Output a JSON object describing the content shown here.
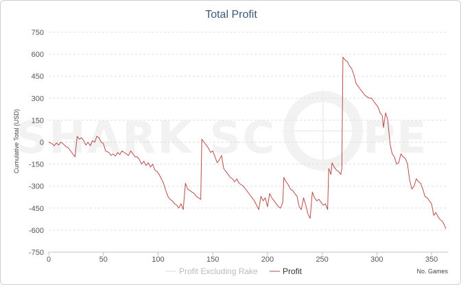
{
  "chart_data": {
    "type": "line",
    "title": "Total Profit",
    "xlabel": "No. Games",
    "ylabel": "Cumulative Total (USD)",
    "xlim": [
      0,
      365
    ],
    "ylim": [
      -750,
      750
    ],
    "x_ticks": [
      0,
      50,
      100,
      150,
      200,
      250,
      300,
      350
    ],
    "y_ticks": [
      750,
      600,
      450,
      300,
      150,
      0,
      -150,
      -300,
      -450,
      -600,
      -750
    ],
    "grid": "horizontal dashed",
    "legend_position": "bottom",
    "watermark": "SHARK SCOPE",
    "series": [
      {
        "name": "Profit Excluding Rake",
        "color": "#d8d8d8",
        "points": []
      },
      {
        "name": "Profit",
        "color": "#b94a48",
        "points": [
          [
            0,
            0
          ],
          [
            3,
            -10
          ],
          [
            5,
            -25
          ],
          [
            7,
            -5
          ],
          [
            9,
            -20
          ],
          [
            11,
            0
          ],
          [
            13,
            -10
          ],
          [
            15,
            -25
          ],
          [
            18,
            -40
          ],
          [
            21,
            -70
          ],
          [
            24,
            -100
          ],
          [
            26,
            40
          ],
          [
            28,
            20
          ],
          [
            30,
            30
          ],
          [
            32,
            10
          ],
          [
            34,
            -20
          ],
          [
            36,
            0
          ],
          [
            38,
            -25
          ],
          [
            40,
            10
          ],
          [
            42,
            0
          ],
          [
            44,
            40
          ],
          [
            46,
            30
          ],
          [
            48,
            0
          ],
          [
            50,
            -10
          ],
          [
            52,
            -60
          ],
          [
            55,
            -70
          ],
          [
            57,
            -90
          ],
          [
            59,
            -80
          ],
          [
            61,
            -95
          ],
          [
            63,
            -70
          ],
          [
            65,
            -85
          ],
          [
            67,
            -60
          ],
          [
            69,
            -70
          ],
          [
            71,
            -80
          ],
          [
            73,
            -90
          ],
          [
            75,
            -60
          ],
          [
            77,
            -80
          ],
          [
            79,
            -100
          ],
          [
            81,
            -100
          ],
          [
            83,
            -120
          ],
          [
            85,
            -150
          ],
          [
            87,
            -130
          ],
          [
            89,
            -160
          ],
          [
            91,
            -140
          ],
          [
            93,
            -170
          ],
          [
            95,
            -150
          ],
          [
            97,
            -190
          ],
          [
            99,
            -200
          ],
          [
            101,
            -220
          ],
          [
            103,
            -250
          ],
          [
            105,
            -280
          ],
          [
            107,
            -330
          ],
          [
            109,
            -370
          ],
          [
            111,
            -390
          ],
          [
            113,
            -400
          ],
          [
            115,
            -420
          ],
          [
            117,
            -430
          ],
          [
            119,
            -450
          ],
          [
            121,
            -420
          ],
          [
            123,
            -460
          ],
          [
            125,
            -280
          ],
          [
            127,
            -320
          ],
          [
            129,
            -330
          ],
          [
            131,
            -340
          ],
          [
            133,
            -350
          ],
          [
            135,
            -370
          ],
          [
            137,
            -380
          ],
          [
            139,
            -390
          ],
          [
            140,
            20
          ],
          [
            142,
            0
          ],
          [
            144,
            -20
          ],
          [
            146,
            -40
          ],
          [
            148,
            -70
          ],
          [
            150,
            -60
          ],
          [
            152,
            -100
          ],
          [
            154,
            -140
          ],
          [
            156,
            -120
          ],
          [
            158,
            -90
          ],
          [
            160,
            -180
          ],
          [
            162,
            -200
          ],
          [
            164,
            -220
          ],
          [
            166,
            -240
          ],
          [
            168,
            -250
          ],
          [
            170,
            -270
          ],
          [
            172,
            -250
          ],
          [
            174,
            -280
          ],
          [
            176,
            -290
          ],
          [
            178,
            -300
          ],
          [
            180,
            -320
          ],
          [
            182,
            -340
          ],
          [
            184,
            -360
          ],
          [
            186,
            -380
          ],
          [
            188,
            -400
          ],
          [
            190,
            -430
          ],
          [
            192,
            -460
          ],
          [
            194,
            -370
          ],
          [
            196,
            -400
          ],
          [
            198,
            -380
          ],
          [
            200,
            -440
          ],
          [
            202,
            -350
          ],
          [
            204,
            -380
          ],
          [
            206,
            -400
          ],
          [
            208,
            -420
          ],
          [
            210,
            -440
          ],
          [
            212,
            -450
          ],
          [
            214,
            -410
          ],
          [
            215,
            -240
          ],
          [
            217,
            -270
          ],
          [
            219,
            -290
          ],
          [
            221,
            -320
          ],
          [
            223,
            -330
          ],
          [
            225,
            -350
          ],
          [
            227,
            -370
          ],
          [
            229,
            -440
          ],
          [
            231,
            -460
          ],
          [
            233,
            -380
          ],
          [
            235,
            -430
          ],
          [
            237,
            -490
          ],
          [
            239,
            -520
          ],
          [
            241,
            -340
          ],
          [
            243,
            -380
          ],
          [
            245,
            -400
          ],
          [
            247,
            -390
          ],
          [
            249,
            -410
          ],
          [
            251,
            -430
          ],
          [
            253,
            -420
          ],
          [
            255,
            -460
          ],
          [
            256,
            -180
          ],
          [
            258,
            -220
          ],
          [
            259,
            -140
          ],
          [
            261,
            -170
          ],
          [
            263,
            -190
          ],
          [
            265,
            -200
          ],
          [
            267,
            -220
          ],
          [
            268,
            -180
          ],
          [
            269,
            580
          ],
          [
            271,
            560
          ],
          [
            273,
            550
          ],
          [
            275,
            520
          ],
          [
            277,
            500
          ],
          [
            279,
            460
          ],
          [
            281,
            400
          ],
          [
            283,
            380
          ],
          [
            285,
            360
          ],
          [
            287,
            340
          ],
          [
            289,
            320
          ],
          [
            291,
            310
          ],
          [
            293,
            300
          ],
          [
            295,
            300
          ],
          [
            297,
            280
          ],
          [
            299,
            260
          ],
          [
            301,
            240
          ],
          [
            303,
            200
          ],
          [
            305,
            180
          ],
          [
            306,
            100
          ],
          [
            308,
            200
          ],
          [
            310,
            150
          ],
          [
            312,
            -10
          ],
          [
            314,
            -80
          ],
          [
            316,
            -100
          ],
          [
            318,
            -150
          ],
          [
            320,
            -140
          ],
          [
            322,
            -80
          ],
          [
            324,
            -100
          ],
          [
            326,
            -110
          ],
          [
            328,
            -150
          ],
          [
            330,
            -260
          ],
          [
            332,
            -320
          ],
          [
            334,
            -300
          ],
          [
            336,
            -250
          ],
          [
            338,
            -270
          ],
          [
            340,
            -280
          ],
          [
            342,
            -320
          ],
          [
            344,
            -370
          ],
          [
            346,
            -380
          ],
          [
            348,
            -400
          ],
          [
            350,
            -420
          ],
          [
            352,
            -500
          ],
          [
            354,
            -480
          ],
          [
            356,
            -510
          ],
          [
            358,
            -530
          ],
          [
            360,
            -540
          ],
          [
            362,
            -570
          ],
          [
            363,
            -590
          ]
        ]
      }
    ]
  }
}
